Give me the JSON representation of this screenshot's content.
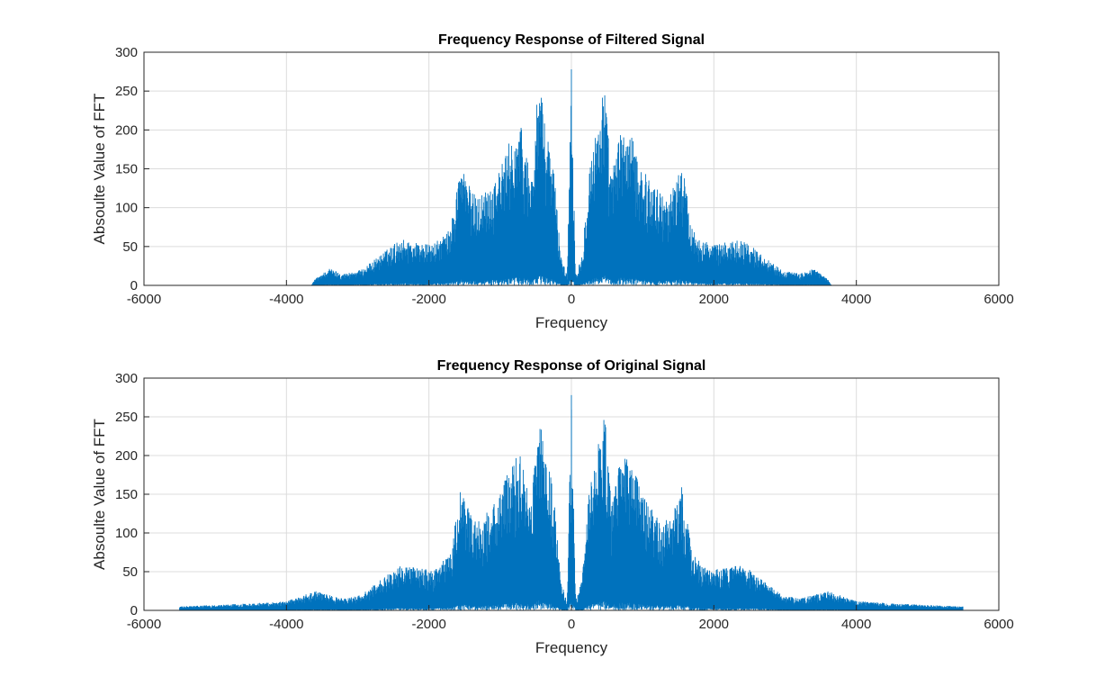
{
  "colors": {
    "line": "#0072bd",
    "axes": "#262626",
    "grid": "#dcdcdc",
    "background": "#ffffff"
  },
  "chart_data": [
    {
      "type": "line",
      "title": "Frequency Response of Filtered Signal",
      "xlabel": "Frequency",
      "ylabel": "Absoulte Value of FFT",
      "xlim": [
        -6000,
        6000
      ],
      "ylim": [
        0,
        300
      ],
      "xticks": [
        "-6000",
        "-4000",
        "-2000",
        "0",
        "2000",
        "4000",
        "6000"
      ],
      "yticks": [
        "0",
        "50",
        "100",
        "150",
        "200",
        "250",
        "300"
      ],
      "grid": true,
      "envelope": {
        "x": [
          -5500,
          -3650,
          -3600,
          -3400,
          -3200,
          -2950,
          -2700,
          -2400,
          -2150,
          -1950,
          -1700,
          -1550,
          -1400,
          -1300,
          -1150,
          -1000,
          -850,
          -700,
          -560,
          -460,
          -350,
          -250,
          -150,
          -60,
          0,
          60,
          150,
          250,
          350,
          460,
          560,
          700,
          850,
          1000,
          1150,
          1300,
          1400,
          1550,
          1700,
          1950,
          2150,
          2400,
          2700,
          2950,
          3200,
          3400,
          3600,
          3650,
          5500
        ],
        "y": [
          0.5,
          0.5,
          8,
          22,
          15,
          20,
          38,
          60,
          55,
          52,
          72,
          160,
          120,
          115,
          130,
          150,
          190,
          205,
          140,
          265,
          200,
          155,
          40,
          12,
          278,
          12,
          40,
          155,
          200,
          265,
          140,
          205,
          190,
          150,
          130,
          115,
          120,
          160,
          72,
          52,
          55,
          60,
          38,
          20,
          15,
          22,
          8,
          0.5,
          0.5
        ]
      }
    },
    {
      "type": "line",
      "title": "Frequency Response of Original Signal",
      "xlabel": "Frequency",
      "ylabel": "Absoulte Value of FFT",
      "xlim": [
        -6000,
        6000
      ],
      "ylim": [
        0,
        300
      ],
      "xticks": [
        "-6000",
        "-4000",
        "-2000",
        "0",
        "2000",
        "4000",
        "6000"
      ],
      "yticks": [
        "0",
        "50",
        "100",
        "150",
        "200",
        "250",
        "300"
      ],
      "grid": true,
      "envelope": {
        "x": [
          -5500,
          -5000,
          -4500,
          -4000,
          -3600,
          -3400,
          -3200,
          -2950,
          -2700,
          -2400,
          -2150,
          -1950,
          -1700,
          -1550,
          -1400,
          -1300,
          -1150,
          -1000,
          -850,
          -700,
          -560,
          -460,
          -350,
          -250,
          -150,
          -60,
          0,
          60,
          150,
          250,
          350,
          460,
          560,
          700,
          850,
          1000,
          1150,
          1300,
          1400,
          1550,
          1700,
          1950,
          2150,
          2400,
          2700,
          2950,
          3200,
          3400,
          3600,
          4000,
          4500,
          5000,
          5500
        ],
        "y": [
          5,
          7,
          9,
          12,
          25,
          20,
          15,
          20,
          38,
          60,
          55,
          52,
          72,
          160,
          120,
          115,
          130,
          150,
          190,
          205,
          140,
          265,
          200,
          155,
          40,
          12,
          278,
          12,
          40,
          155,
          200,
          265,
          140,
          205,
          190,
          150,
          130,
          115,
          120,
          160,
          72,
          52,
          55,
          60,
          38,
          20,
          15,
          20,
          25,
          12,
          9,
          7,
          5
        ]
      }
    }
  ]
}
